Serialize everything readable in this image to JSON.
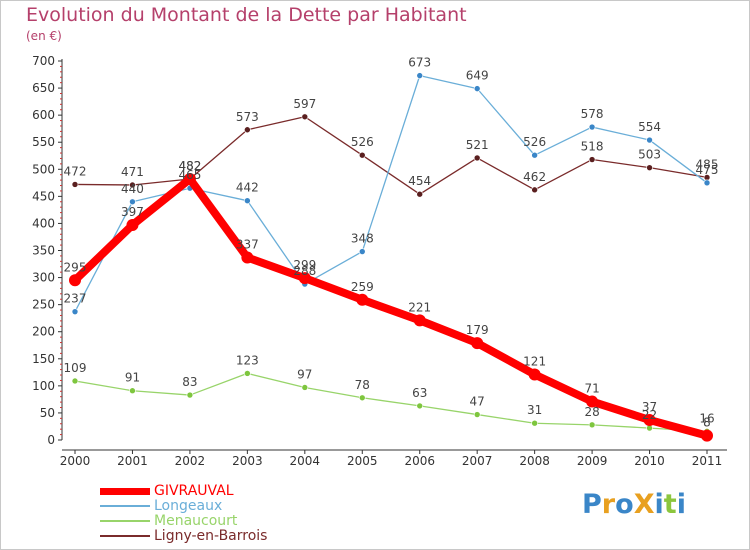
{
  "title": "Evolution du Montant de la Dette par Habitant",
  "subtitle": "(en €)",
  "logo_text": "ProXiti",
  "chart_data": {
    "type": "line",
    "title": "Evolution du Montant de la Dette par Habitant",
    "ylabel": "(en €)",
    "xlabel": "",
    "categories": [
      "2000",
      "2001",
      "2002",
      "2003",
      "2004",
      "2005",
      "2006",
      "2007",
      "2008",
      "2009",
      "2010",
      "2011"
    ],
    "ylim": [
      0,
      700
    ],
    "yticks": [
      0,
      50,
      100,
      150,
      200,
      250,
      300,
      350,
      400,
      450,
      500,
      550,
      600,
      650,
      700
    ],
    "grid": false,
    "legend_position": "bottom-left",
    "series": [
      {
        "name": "GIVRAUVAL",
        "color": "#ff0000",
        "values": [
          295,
          397,
          482,
          337,
          299,
          259,
          221,
          179,
          121,
          71,
          37,
          8
        ],
        "labels": [
          "295",
          "397",
          "482",
          "337",
          "299",
          "259",
          "221",
          "179",
          "121",
          "71",
          "37",
          "8"
        ]
      },
      {
        "name": "Longeaux",
        "color": "#6aaed8",
        "values": [
          237,
          440,
          465,
          442,
          288,
          348,
          673,
          649,
          526,
          578,
          554,
          475
        ],
        "labels": [
          "237",
          "440",
          "465",
          "442",
          "288",
          "348",
          "673",
          "649",
          "526",
          "578",
          "554",
          "475"
        ]
      },
      {
        "name": "Menaucourt",
        "color": "#98d46a",
        "values": [
          109,
          91,
          83,
          123,
          97,
          78,
          63,
          47,
          31,
          28,
          22,
          16
        ],
        "labels": [
          "109",
          "91",
          "83",
          "123",
          "97",
          "78",
          "63",
          "47",
          "31",
          "28",
          "22",
          "16"
        ]
      },
      {
        "name": "Ligny-en-Barrois",
        "color": "#7a2b2b",
        "values": [
          472,
          471,
          482,
          573,
          597,
          526,
          454,
          521,
          462,
          518,
          503,
          485
        ],
        "labels": [
          "472",
          "471",
          "482",
          "573",
          "597",
          "526",
          "454",
          "521",
          "462",
          "518",
          "503",
          "485"
        ]
      }
    ]
  }
}
